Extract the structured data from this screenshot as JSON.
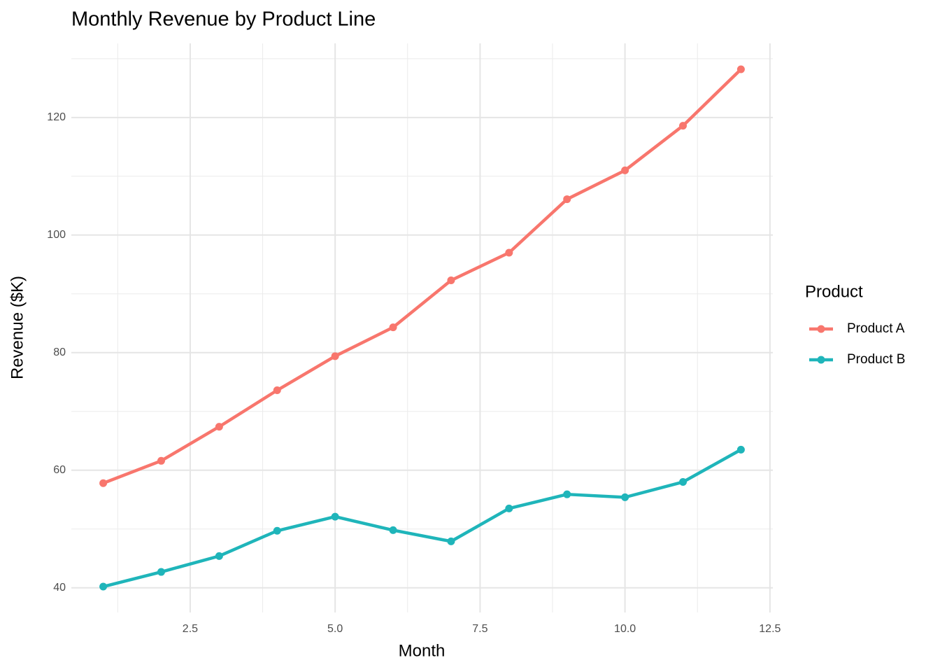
{
  "chart_data": {
    "type": "line",
    "title": "Monthly Revenue by Product Line",
    "x_label": "Month",
    "y_label": "Revenue ($K)",
    "legend_title": "Product",
    "legend": "right",
    "x": [
      1,
      2,
      3,
      4,
      5,
      6,
      7,
      8,
      9,
      10,
      11,
      12
    ],
    "series": [
      {
        "name": "Product A",
        "color": "#F8766D",
        "values": [
          57.8,
          61.6,
          67.4,
          73.6,
          79.4,
          84.3,
          92.3,
          97.0,
          106.1,
          111.0,
          118.6,
          128.2
        ]
      },
      {
        "name": "Product B",
        "color": "#1FB5BA",
        "values": [
          40.2,
          42.7,
          45.4,
          49.7,
          52.1,
          49.8,
          47.9,
          53.5,
          55.9,
          55.4,
          58.0,
          63.5
        ]
      }
    ],
    "xlim": [
      0.45,
      12.55
    ],
    "ylim": [
      35.8,
      132.6
    ],
    "xticks": [
      2.5,
      {
        "value": 5,
        "label": "5.0"
      },
      7.5,
      {
        "value": 10,
        "label": "10.0"
      },
      12.5
    ],
    "yticks": [
      40,
      60,
      80,
      100,
      120
    ],
    "grid": true,
    "minor_grid": true
  }
}
